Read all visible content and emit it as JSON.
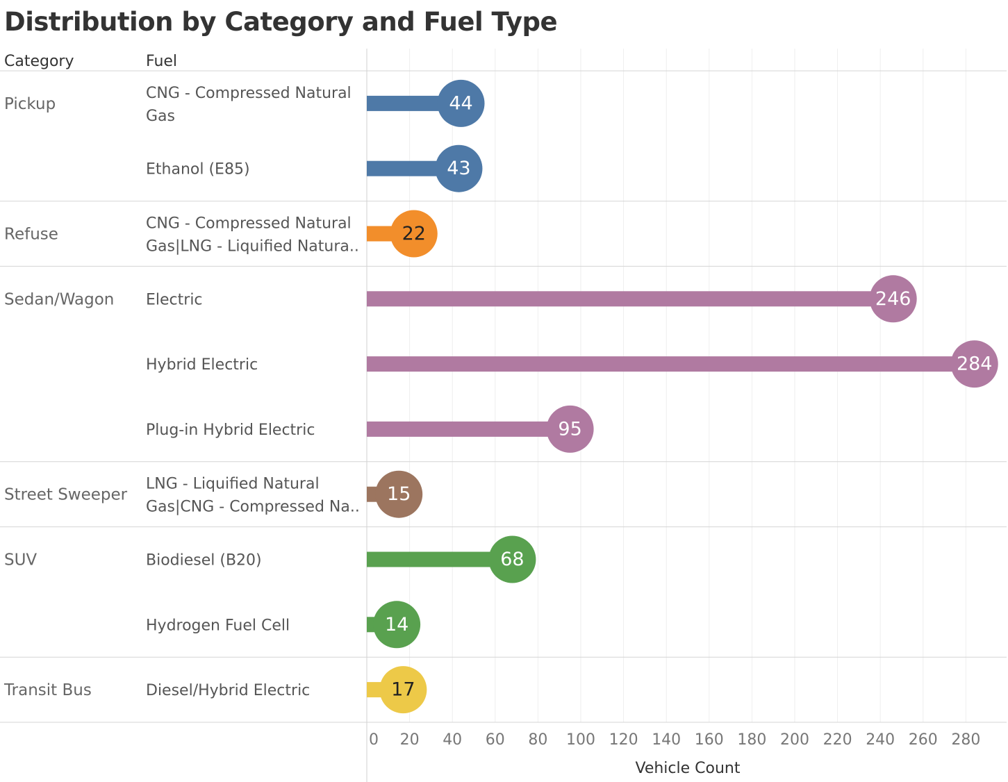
{
  "chart_data": {
    "type": "bar",
    "title": "Distribution by Category and Fuel Type",
    "row_headers": [
      "Category",
      "Fuel"
    ],
    "xlabel": "Vehicle Count",
    "xlim": [
      0,
      300
    ],
    "x_ticks": [
      0,
      20,
      40,
      60,
      80,
      100,
      120,
      140,
      160,
      180,
      200,
      220,
      240,
      260,
      280
    ],
    "grid": true,
    "groups": [
      {
        "category": "Pickup",
        "color": "#4e79a7",
        "label_color": "#ffffff",
        "rows": [
          {
            "fuel": [
              "CNG - Compressed Natural",
              "Gas"
            ],
            "value": 44
          },
          {
            "fuel": [
              "Ethanol (E85)"
            ],
            "value": 43
          }
        ]
      },
      {
        "category": "Refuse",
        "color": "#f28e2b",
        "label_color": "#222222",
        "rows": [
          {
            "fuel": [
              "CNG - Compressed Natural",
              "Gas|LNG - Liquified Natura.."
            ],
            "value": 22
          }
        ]
      },
      {
        "category": "Sedan/Wagon",
        "color": "#b07aa1",
        "label_color": "#ffffff",
        "rows": [
          {
            "fuel": [
              "Electric"
            ],
            "value": 246
          },
          {
            "fuel": [
              "Hybrid Electric"
            ],
            "value": 284
          },
          {
            "fuel": [
              "Plug-in Hybrid Electric"
            ],
            "value": 95
          }
        ]
      },
      {
        "category": "Street Sweeper",
        "color": "#9c755f",
        "label_color": "#ffffff",
        "rows": [
          {
            "fuel": [
              "LNG - Liquified Natural",
              "Gas|CNG - Compressed Na.."
            ],
            "value": 15
          }
        ]
      },
      {
        "category": "SUV",
        "color": "#59a14f",
        "label_color": "#ffffff",
        "rows": [
          {
            "fuel": [
              "Biodiesel (B20)"
            ],
            "value": 68
          },
          {
            "fuel": [
              "Hydrogen Fuel Cell"
            ],
            "value": 14
          }
        ]
      },
      {
        "category": "Transit Bus",
        "color": "#edc948",
        "label_color": "#222222",
        "rows": [
          {
            "fuel": [
              "Diesel/Hybrid Electric"
            ],
            "value": 17
          }
        ]
      }
    ]
  }
}
